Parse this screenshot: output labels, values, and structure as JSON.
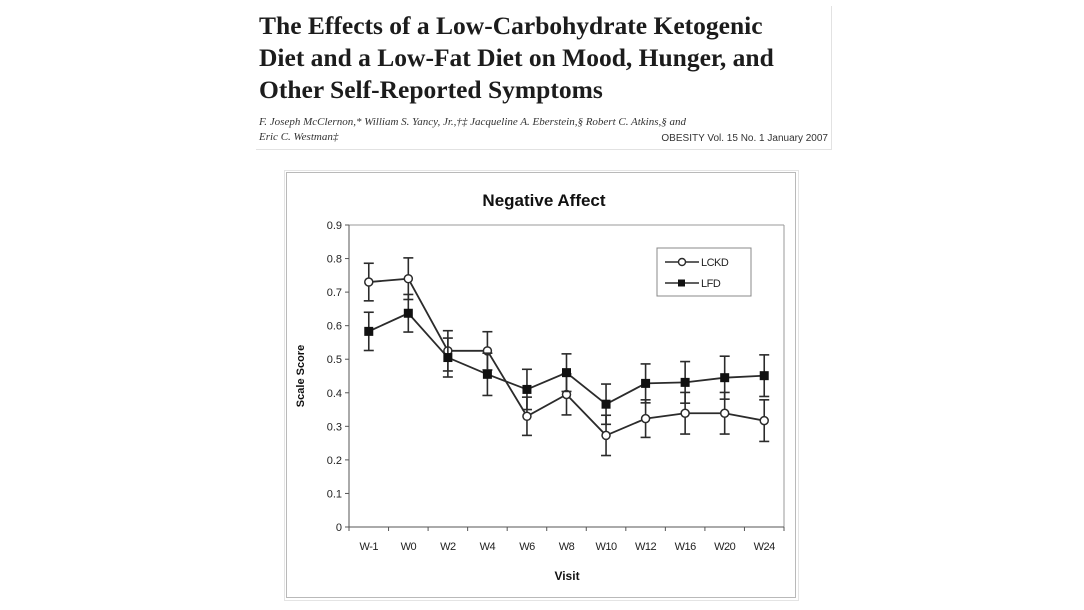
{
  "paper": {
    "title_lines": [
      "The Effects of a Low-Carbohydrate Ketogenic",
      "Diet and a Low-Fat Diet on Mood, Hunger, and",
      "Other Self-Reported Symptoms"
    ],
    "authors_line1": "F. Joseph McClernon,* William S. Yancy, Jr.,†‡ Jacqueline A. Eberstein,§ Robert C. Atkins,§ and",
    "authors_line2": "Eric C. Westman‡",
    "citation": "OBESITY Vol. 15 No. 1 January 2007"
  },
  "chart_data": {
    "type": "line",
    "title": "Negative Affect",
    "xlabel": "Visit",
    "ylabel": "Scale Score",
    "categories": [
      "W-1",
      "W0",
      "W2",
      "W4",
      "W6",
      "W8",
      "W10",
      "W12",
      "W16",
      "W20",
      "W24"
    ],
    "ylim": [
      0,
      0.9
    ],
    "yticks": [
      "0",
      "0.1",
      "0.2",
      "0.3",
      "0.4",
      "0.5",
      "0.6",
      "0.7",
      "0.8",
      "0.9"
    ],
    "ytick_values": [
      0,
      0.1,
      0.2,
      0.3,
      0.4,
      0.5,
      0.6,
      0.7,
      0.8,
      0.9
    ],
    "grid": false,
    "legend_position": "top-right",
    "error_bars": true,
    "series": [
      {
        "name": "LCKD",
        "marker": "open-diamond",
        "values": [
          0.73,
          0.74,
          0.525,
          0.525,
          0.33,
          0.395,
          0.273,
          0.323,
          0.339,
          0.339,
          0.317
        ],
        "error": [
          0.056,
          0.062,
          0.06,
          0.057,
          0.057,
          0.061,
          0.06,
          0.056,
          0.062,
          0.062,
          0.062
        ]
      },
      {
        "name": "LFD",
        "marker": "filled-square",
        "values": [
          0.583,
          0.637,
          0.505,
          0.455,
          0.41,
          0.46,
          0.366,
          0.428,
          0.431,
          0.445,
          0.451
        ],
        "error": [
          0.057,
          0.056,
          0.058,
          0.063,
          0.06,
          0.056,
          0.06,
          0.058,
          0.062,
          0.064,
          0.062
        ]
      }
    ]
  }
}
